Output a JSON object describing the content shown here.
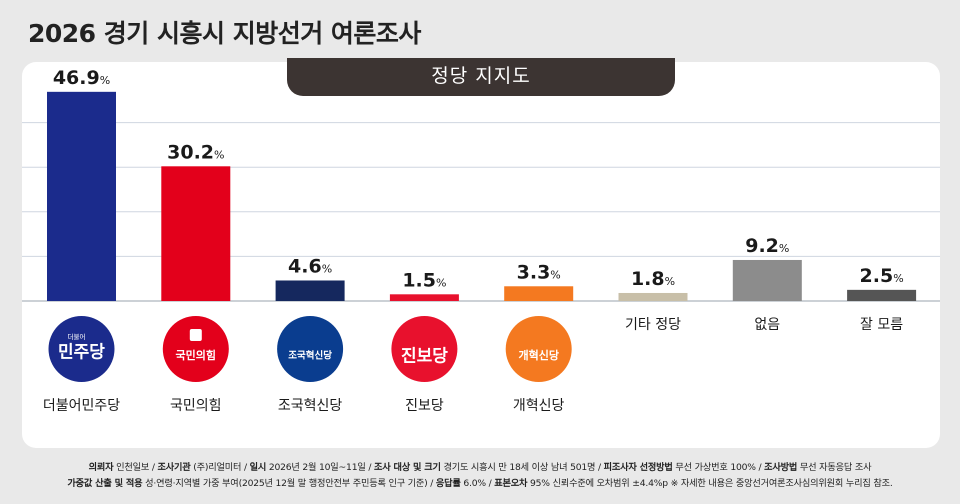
{
  "title": "2026 경기 시흥시 지방선거 여론조사",
  "subtitle": "정당 지지도",
  "colors": {
    "background": "#e9e9e9",
    "panel": "#ffffff",
    "pill": "#3c3432"
  },
  "chart_data": {
    "type": "bar",
    "title": "정당 지지도",
    "unit": "%",
    "categories": [
      "더불어민주당",
      "국민의힘",
      "조국혁신당",
      "진보당",
      "개혁신당",
      "기타 정당",
      "없음",
      "잘 모름"
    ],
    "values": [
      46.9,
      30.2,
      4.6,
      1.5,
      3.3,
      1.8,
      9.2,
      2.5
    ],
    "value_labels": [
      "46.9",
      "30.2",
      "4.6",
      "1.5",
      "3.3",
      "1.8",
      "9.2",
      "2.5"
    ],
    "bar_colors": [
      "#1b2b8c",
      "#e3001b",
      "#15285e",
      "#e8112d",
      "#f47920",
      "#c8bfa8",
      "#8c8c8c",
      "#555555"
    ],
    "ylim": [
      0,
      50
    ],
    "grid": true,
    "party_logos": [
      {
        "category": "더불어민주당",
        "icon": "minjoo-logo",
        "text": "민주당",
        "small_text": "더불어",
        "bg": "#1b2b8c"
      },
      {
        "category": "국민의힘",
        "icon": "ppp-logo",
        "text": "국민의힘",
        "bg": "#e3001b"
      },
      {
        "category": "조국혁신당",
        "icon": "rebuilding-korea-logo",
        "text": "조국혁신당",
        "bg": "#0a3d8f"
      },
      {
        "category": "진보당",
        "icon": "progressive-logo",
        "text": "진보당",
        "bg": "#e8112d"
      },
      {
        "category": "개혁신당",
        "icon": "reform-logo",
        "text": "개혁신당",
        "bg": "#f47920"
      }
    ]
  },
  "footer": {
    "line1": [
      {
        "label": "의뢰자",
        "text": "인천일보"
      },
      {
        "label": "조사기관",
        "text": "(주)리얼미터"
      },
      {
        "label": "일시",
        "text": "2026년 2월 10일~11일"
      },
      {
        "label": "조사 대상 및 크기",
        "text": "경기도 시흥시 만 18세 이상 남녀 501명"
      },
      {
        "label": "피조사자 선정방법",
        "text": "무선 가상번호 100%"
      },
      {
        "label": "조사방법",
        "text": "무선 자동응답 조사"
      }
    ],
    "line2": [
      {
        "label": "가중값 산출 및 적용",
        "text": "성·연령·지역별 가중 부여(2025년 12월 말 행정안전부 주민등록 인구 기준)"
      },
      {
        "label": "응답률",
        "text": "6.0%"
      },
      {
        "label": "표본오차",
        "text": "95% 신뢰수준에 오차범위 ±4.4%p"
      }
    ],
    "note": "※ 자세한 내용은 중앙선거여론조사심의위원회 누리집 참조."
  }
}
